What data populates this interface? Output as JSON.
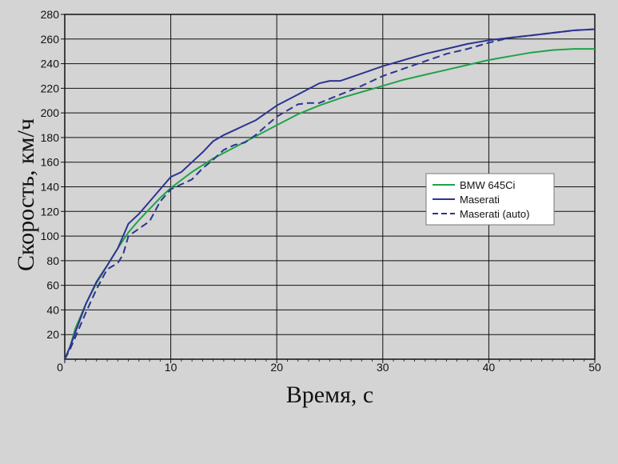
{
  "chart_data": {
    "type": "line",
    "title": "",
    "xlabel": "Время, с",
    "ylabel": "Скорость, км/ч",
    "xlim": [
      0,
      50
    ],
    "ylim": [
      0,
      280
    ],
    "x_ticks": [
      0,
      10,
      20,
      30,
      40,
      50
    ],
    "y_ticks": [
      20,
      40,
      60,
      80,
      100,
      120,
      140,
      160,
      180,
      200,
      220,
      240,
      260,
      280
    ],
    "y_tick_labels": [
      "20",
      "40",
      "60",
      "80",
      "100",
      "120",
      "140",
      "160",
      "180",
      "200",
      "220",
      "240",
      "260",
      "280"
    ],
    "x_tick_labels": [
      "0",
      "10",
      "20",
      "30",
      "40",
      "50"
    ],
    "grid": true,
    "legend_position": "right",
    "series": [
      {
        "name": "BMW 645Ci",
        "color": "#1fa34a",
        "style": "solid",
        "points": [
          [
            0,
            0
          ],
          [
            0.5,
            10
          ],
          [
            1,
            25
          ],
          [
            2,
            45
          ],
          [
            3,
            62
          ],
          [
            4,
            76
          ],
          [
            5,
            90
          ],
          [
            6,
            103
          ],
          [
            7,
            113
          ],
          [
            8,
            122
          ],
          [
            9,
            131
          ],
          [
            10,
            139
          ],
          [
            12,
            152
          ],
          [
            14,
            163
          ],
          [
            16,
            172
          ],
          [
            18,
            181
          ],
          [
            20,
            190
          ],
          [
            22,
            199
          ],
          [
            24,
            206
          ],
          [
            26,
            212
          ],
          [
            28,
            217
          ],
          [
            30,
            222
          ],
          [
            32,
            227
          ],
          [
            34,
            231
          ],
          [
            36,
            235
          ],
          [
            38,
            239
          ],
          [
            40,
            243
          ],
          [
            42,
            246
          ],
          [
            44,
            249
          ],
          [
            46,
            251
          ],
          [
            48,
            252
          ],
          [
            50,
            252
          ]
        ]
      },
      {
        "name": "Maserati",
        "color": "#2c3590",
        "style": "solid",
        "points": [
          [
            0,
            0
          ],
          [
            0.5,
            10
          ],
          [
            1,
            22
          ],
          [
            2,
            45
          ],
          [
            3,
            63
          ],
          [
            4,
            76
          ],
          [
            5,
            90
          ],
          [
            6,
            110
          ],
          [
            7,
            118
          ],
          [
            8,
            128
          ],
          [
            9,
            138
          ],
          [
            10,
            148
          ],
          [
            11,
            152
          ],
          [
            12,
            160
          ],
          [
            13,
            168
          ],
          [
            14,
            177
          ],
          [
            15,
            182
          ],
          [
            16,
            186
          ],
          [
            17,
            190
          ],
          [
            18,
            194
          ],
          [
            20,
            206
          ],
          [
            22,
            215
          ],
          [
            24,
            224
          ],
          [
            25,
            226
          ],
          [
            26,
            226
          ],
          [
            28,
            232
          ],
          [
            30,
            238
          ],
          [
            32,
            243
          ],
          [
            34,
            248
          ],
          [
            36,
            252
          ],
          [
            38,
            256
          ],
          [
            40,
            259
          ],
          [
            42,
            261
          ],
          [
            44,
            263
          ],
          [
            46,
            265
          ],
          [
            48,
            267
          ],
          [
            50,
            268
          ]
        ]
      },
      {
        "name": "Maserati (auto)",
        "color": "#2c3590",
        "style": "dashed",
        "points": [
          [
            0,
            0
          ],
          [
            0.5,
            8
          ],
          [
            1,
            18
          ],
          [
            2,
            38
          ],
          [
            3,
            57
          ],
          [
            4,
            73
          ],
          [
            5,
            78
          ],
          [
            5.5,
            85
          ],
          [
            6,
            100
          ],
          [
            7,
            106
          ],
          [
            8,
            112
          ],
          [
            9,
            128
          ],
          [
            10,
            138
          ],
          [
            11,
            142
          ],
          [
            12,
            146
          ],
          [
            13,
            155
          ],
          [
            14,
            162
          ],
          [
            15,
            170
          ],
          [
            16,
            174
          ],
          [
            17,
            176
          ],
          [
            18,
            182
          ],
          [
            20,
            197
          ],
          [
            22,
            207
          ],
          [
            23,
            208
          ],
          [
            24,
            208
          ],
          [
            26,
            215
          ],
          [
            28,
            222
          ],
          [
            30,
            230
          ],
          [
            32,
            236
          ],
          [
            34,
            242
          ],
          [
            36,
            248
          ],
          [
            38,
            252
          ],
          [
            40,
            257
          ],
          [
            42,
            261
          ],
          [
            44,
            263
          ],
          [
            46,
            265
          ],
          [
            48,
            267
          ],
          [
            50,
            268
          ]
        ]
      }
    ]
  }
}
